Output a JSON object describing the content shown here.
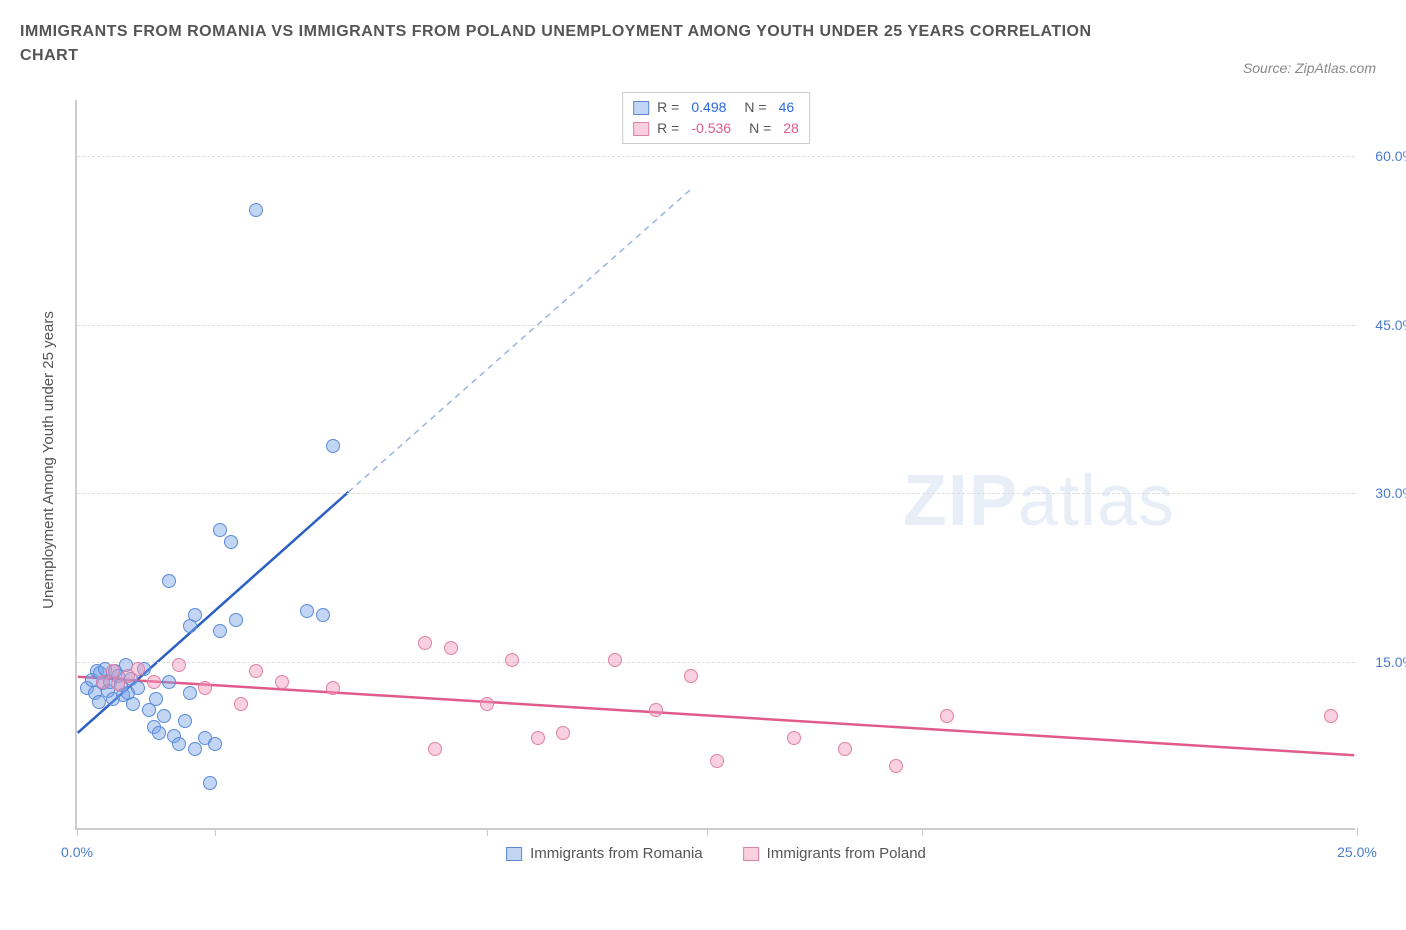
{
  "title": "IMMIGRANTS FROM ROMANIA VS IMMIGRANTS FROM POLAND UNEMPLOYMENT AMONG YOUTH UNDER 25 YEARS CORRELATION CHART",
  "source": "Source: ZipAtlas.com",
  "y_axis_label": "Unemployment Among Youth under 25 years",
  "watermark_bold": "ZIP",
  "watermark_light": "atlas",
  "chart": {
    "type": "scatter",
    "xlim": [
      0,
      25
    ],
    "ylim": [
      0,
      65
    ],
    "x_ticks": [
      0,
      2.7,
      8.0,
      12.3,
      16.5,
      25
    ],
    "x_tick_labels": {
      "0": "0.0%",
      "25": "25.0%"
    },
    "y_grid": [
      15,
      30,
      45,
      60
    ],
    "y_tick_labels": [
      "15.0%",
      "30.0%",
      "45.0%",
      "60.0%"
    ],
    "background_color": "#ffffff",
    "grid_color": "#dddddd",
    "axis_color": "#cccccc",
    "marker_radius": 7,
    "series": [
      {
        "name": "Immigrants from Romania",
        "color_fill": "rgba(120,165,230,0.45)",
        "color_stroke": "#5a8bd8",
        "trend_color": "#2b5fc4",
        "trend_dash_color": "#9bb4de",
        "stats": {
          "r": "0.498",
          "n": "46"
        },
        "trend": {
          "x1": 0,
          "y1": 8.5,
          "x2_solid": 5.3,
          "y2_solid": 30,
          "x2_dash": 12.0,
          "y2_dash": 57
        },
        "points": [
          [
            0.2,
            12.5
          ],
          [
            0.3,
            13.2
          ],
          [
            0.35,
            12.0
          ],
          [
            0.4,
            14.0
          ],
          [
            0.42,
            11.2
          ],
          [
            0.45,
            13.8
          ],
          [
            0.5,
            12.9
          ],
          [
            0.55,
            14.2
          ],
          [
            0.6,
            12.2
          ],
          [
            0.65,
            13.0
          ],
          [
            0.7,
            11.5
          ],
          [
            0.75,
            14.0
          ],
          [
            0.8,
            13.5
          ],
          [
            0.85,
            12.7
          ],
          [
            0.9,
            11.8
          ],
          [
            0.95,
            14.5
          ],
          [
            1.0,
            12.0
          ],
          [
            1.05,
            13.3
          ],
          [
            1.1,
            11.0
          ],
          [
            1.2,
            12.5
          ],
          [
            1.3,
            14.2
          ],
          [
            1.4,
            10.5
          ],
          [
            1.5,
            9.0
          ],
          [
            1.55,
            11.5
          ],
          [
            1.6,
            8.5
          ],
          [
            1.7,
            10.0
          ],
          [
            1.8,
            13.0
          ],
          [
            1.9,
            8.2
          ],
          [
            2.0,
            7.5
          ],
          [
            2.1,
            9.5
          ],
          [
            2.2,
            12.0
          ],
          [
            2.3,
            7.0
          ],
          [
            2.5,
            8.0
          ],
          [
            2.7,
            7.5
          ],
          [
            1.8,
            22.0
          ],
          [
            2.2,
            18.0
          ],
          [
            2.3,
            19.0
          ],
          [
            2.8,
            26.5
          ],
          [
            2.8,
            17.5
          ],
          [
            3.0,
            25.5
          ],
          [
            3.1,
            18.5
          ],
          [
            3.5,
            55.0
          ],
          [
            4.5,
            19.3
          ],
          [
            4.8,
            19.0
          ],
          [
            5.0,
            34.0
          ],
          [
            2.6,
            4.0
          ]
        ]
      },
      {
        "name": "Immigrants from Poland",
        "color_fill": "rgba(240,150,185,0.45)",
        "color_stroke": "#e080a8",
        "trend_color": "#e05a8b",
        "stats": {
          "r": "-0.536",
          "n": "28"
        },
        "trend": {
          "x1": 0,
          "y1": 13.5,
          "x2_solid": 25,
          "y2_solid": 6.5
        },
        "points": [
          [
            0.5,
            13.0
          ],
          [
            0.7,
            14.0
          ],
          [
            0.8,
            12.8
          ],
          [
            1.0,
            13.5
          ],
          [
            1.2,
            14.2
          ],
          [
            1.5,
            13.0
          ],
          [
            2.0,
            14.5
          ],
          [
            2.5,
            12.5
          ],
          [
            3.2,
            11.0
          ],
          [
            3.5,
            14.0
          ],
          [
            4.0,
            13.0
          ],
          [
            5.0,
            12.5
          ],
          [
            6.8,
            16.5
          ],
          [
            7.0,
            7.0
          ],
          [
            7.3,
            16.0
          ],
          [
            8.0,
            11.0
          ],
          [
            8.5,
            15.0
          ],
          [
            9.0,
            8.0
          ],
          [
            9.5,
            8.5
          ],
          [
            10.5,
            15.0
          ],
          [
            11.3,
            10.5
          ],
          [
            12.0,
            13.5
          ],
          [
            12.5,
            6.0
          ],
          [
            14.0,
            8.0
          ],
          [
            15.0,
            7.0
          ],
          [
            16.0,
            5.5
          ],
          [
            17.0,
            10.0
          ],
          [
            24.5,
            10.0
          ]
        ]
      }
    ]
  },
  "legend": {
    "romania": "Immigrants from Romania",
    "poland": "Immigrants from Poland"
  },
  "stats_labels": {
    "r": "R =",
    "n": "N ="
  }
}
